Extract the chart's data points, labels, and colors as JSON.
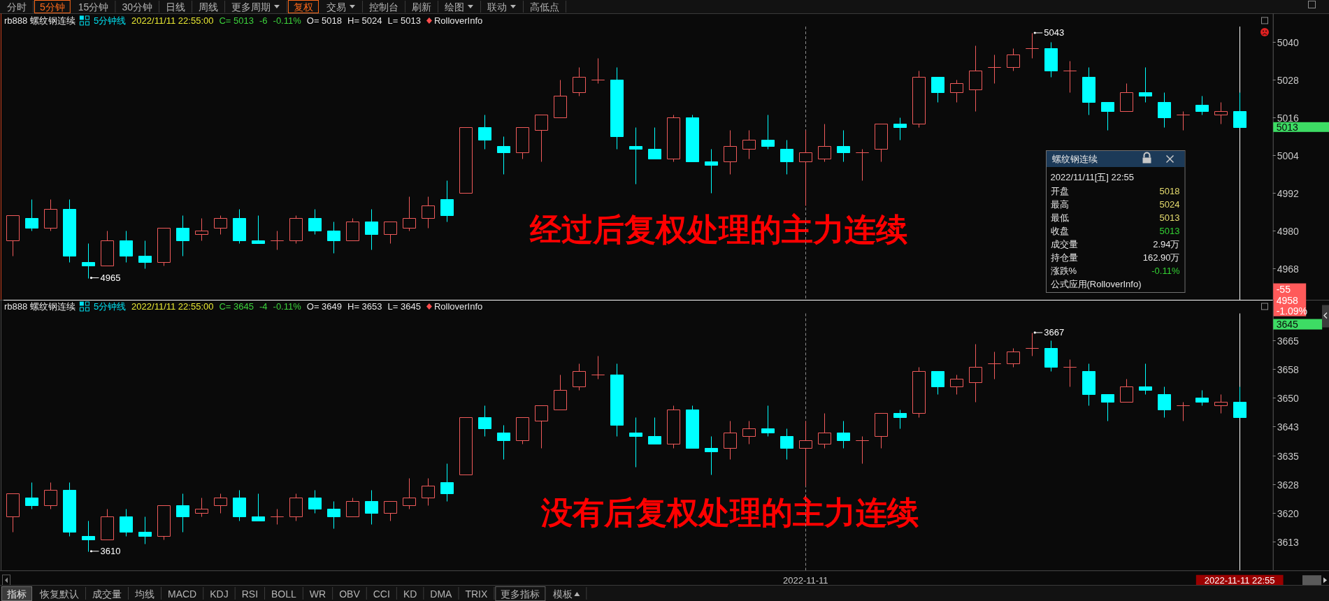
{
  "chart_data": [
    {
      "type": "other",
      "annotations": [
        "分时",
        "5分钟",
        "15分钟",
        "30分钟",
        "日线",
        "周线",
        "更多周期",
        "复权",
        "交易",
        "控制台",
        "刷新",
        "绘图",
        "联动",
        "高低点"
      ]
    },
    {
      "type": "candlestick",
      "title": "rb888 螺纹钢连续",
      "categories": [
        null,
        null,
        null,
        null,
        null,
        null,
        null,
        null,
        null,
        null,
        null,
        null,
        null,
        null,
        null,
        null,
        null,
        null,
        null,
        null,
        null,
        null,
        null,
        null,
        null,
        null,
        null,
        null,
        null,
        null,
        null,
        null,
        null,
        null,
        null,
        null,
        null,
        null,
        null,
        null,
        null,
        null,
        "2022-11-11",
        null,
        null,
        null,
        null,
        null,
        null,
        null,
        null,
        null,
        null,
        null,
        null,
        null,
        null,
        null,
        null,
        null,
        null,
        null,
        null,
        null,
        null,
        "2022-11-11 22:55"
      ],
      "ohlc": [
        [
          4977,
          4985,
          4972,
          4985
        ],
        [
          4984,
          4990,
          4980,
          4981
        ],
        [
          4981,
          4990,
          4980,
          4987
        ],
        [
          4987,
          4990,
          4970,
          4972
        ],
        [
          4970,
          4976,
          4965,
          4969
        ],
        [
          4969,
          4980,
          4969,
          4977
        ],
        [
          4977,
          4980,
          4970,
          4972
        ],
        [
          4972,
          4977,
          4968,
          4970
        ],
        [
          4970,
          4981,
          4969,
          4981
        ],
        [
          4981,
          4985,
          4972,
          4977
        ],
        [
          4979,
          4984,
          4977,
          4980
        ],
        [
          4981,
          4985,
          4979,
          4984
        ],
        [
          4984,
          4987,
          4976,
          4977
        ],
        [
          4977,
          4985,
          4976,
          4976
        ],
        [
          4977,
          4980,
          4974,
          4977
        ],
        [
          4977,
          4985,
          4976,
          4984
        ],
        [
          4984,
          4987,
          4979,
          4980
        ],
        [
          4980,
          4983,
          4973,
          4977
        ],
        [
          4977,
          4984,
          4977,
          4983
        ],
        [
          4983,
          4987,
          4974,
          4979
        ],
        [
          4979,
          4983,
          4976,
          4983
        ],
        [
          4981,
          4991,
          4980,
          4984
        ],
        [
          4984,
          4991,
          4981,
          4988
        ],
        [
          4990,
          4996,
          4983,
          4985
        ],
        [
          4992,
          5013,
          4992,
          5013
        ],
        [
          5013,
          5017,
          5006,
          5009
        ],
        [
          5007,
          5010,
          4998,
          5005
        ],
        [
          5005,
          5013,
          5003,
          5013
        ],
        [
          5012,
          5017,
          5002,
          5017
        ],
        [
          5016,
          5028,
          5016,
          5023
        ],
        [
          5024,
          5032,
          5023,
          5029
        ],
        [
          5028,
          5035,
          5027,
          5028
        ],
        [
          5028,
          5032,
          5006,
          5010
        ],
        [
          5007,
          5013,
          4995,
          5006
        ],
        [
          5006,
          5013,
          5003,
          5003
        ],
        [
          5003,
          5017,
          5002,
          5016
        ],
        [
          5016,
          5017,
          5002,
          5002
        ],
        [
          5002,
          5006,
          4992,
          5001
        ],
        [
          5002,
          5012,
          4998,
          5007
        ],
        [
          5006,
          5012,
          5003,
          5009
        ],
        [
          5009,
          5017,
          5006,
          5007
        ],
        [
          5006,
          5009,
          4998,
          5002
        ],
        [
          5002,
          5012,
          4988,
          5005
        ],
        [
          5003,
          5014,
          5002,
          5007
        ],
        [
          5007,
          5012,
          5002,
          5005
        ],
        [
          5005,
          5006,
          4996,
          5005
        ],
        [
          5006,
          5014,
          5002,
          5014
        ],
        [
          5014,
          5016,
          5009,
          5013
        ],
        [
          5014,
          5031,
          5013,
          5029
        ],
        [
          5029,
          5029,
          5021,
          5024
        ],
        [
          5024,
          5028,
          5021,
          5027
        ],
        [
          5025,
          5039,
          5018,
          5031
        ],
        [
          5032,
          5036,
          5027,
          5032
        ],
        [
          5032,
          5038,
          5031,
          5036
        ],
        [
          5038,
          5043,
          5035,
          5038
        ],
        [
          5038,
          5040,
          5029,
          5031
        ],
        [
          5031,
          5034,
          5024,
          5031
        ],
        [
          5029,
          5032,
          5017,
          5021
        ],
        [
          5021,
          5021,
          5012,
          5018
        ],
        [
          5018,
          5027,
          5018,
          5024
        ],
        [
          5024,
          5032,
          5021,
          5023
        ],
        [
          5021,
          5024,
          5013,
          5016
        ],
        [
          5017,
          5018,
          5012,
          5017
        ],
        [
          5020,
          5023,
          5017,
          5018
        ],
        [
          5017,
          5021,
          5014,
          5018
        ],
        [
          5018,
          5024,
          5013,
          5013
        ]
      ],
      "colors": [
        "#f05a5a",
        "#00ffff",
        "#f05a5a",
        "#00ffff",
        "#00ffff",
        "#f05a5a",
        "#00ffff",
        "#00ffff",
        "#f05a5a",
        "#00ffff",
        "#f05a5a",
        "#f05a5a",
        "#00ffff",
        "#00ffff",
        "#f05a5a",
        "#f05a5a",
        "#00ffff",
        "#00ffff",
        "#f05a5a",
        "#00ffff",
        "#f05a5a",
        "#f05a5a",
        "#f05a5a",
        "#00ffff",
        "#f05a5a",
        "#00ffff",
        "#00ffff",
        "#f05a5a",
        "#f05a5a",
        "#f05a5a",
        "#f05a5a",
        "#f05a5a",
        "#00ffff",
        "#00ffff",
        "#00ffff",
        "#f05a5a",
        "#00ffff",
        "#00ffff",
        "#f05a5a",
        "#f05a5a",
        "#00ffff",
        "#00ffff",
        "#f05a5a",
        "#f05a5a",
        "#00ffff",
        "#f05a5a",
        "#f05a5a",
        "#00ffff",
        "#f05a5a",
        "#00ffff",
        "#f05a5a",
        "#f05a5a",
        "#f05a5a",
        "#f05a5a",
        "#f05a5a",
        "#00ffff",
        "#f05a5a",
        "#00ffff",
        "#00ffff",
        "#f05a5a",
        "#00ffff",
        "#00ffff",
        "#f05a5a",
        "#00ffff",
        "#f05a5a",
        "#00ffff"
      ],
      "ylim": [
        4958,
        5045
      ],
      "yticks": [
        4968,
        4980,
        4992,
        5004,
        5016,
        5028,
        5040
      ],
      "tick_labels": "y",
      "ref_lines": [
        {
          "axis": "x",
          "value": "2022-11-11",
          "color": "#8c8c8c",
          "line_style": "dashed"
        },
        {
          "axis": "x",
          "value": "2022-11-11 22:55",
          "color": "#ffffff"
        },
        {
          "axis": "y",
          "value": 4958,
          "label": "4958",
          "color": "#ffffff"
        }
      ],
      "annotations": [
        "5分钟线",
        "2022/11/11 22:55:00",
        "C= 5013",
        "-6",
        "-0.11%",
        "O= 5018",
        "H= 5024",
        "L= 5013",
        "RolloverInfo",
        "经过后复权处理的主力连续",
        "5043",
        "4965",
        "5013",
        "-55",
        "-1.09%"
      ]
    },
    {
      "type": "other",
      "title": "螺纹钢连续",
      "subtitle": "2022/11/11[五] 22:55",
      "annotations": [
        "开盘",
        "5018",
        "最高",
        "5024",
        "最低",
        "5013",
        "收盘",
        "5013",
        "成交量",
        "2.94万",
        "持仓量",
        "162.90万",
        "涨跌%",
        "-0.11%",
        "公式应用(RolloverInfo)"
      ]
    },
    {
      "type": "candlestick",
      "title": "rb888 螺纹钢连续",
      "categories": [
        null,
        null,
        null,
        null,
        null,
        null,
        null,
        null,
        null,
        null,
        null,
        null,
        null,
        null,
        null,
        null,
        null,
        null,
        null,
        null,
        null,
        null,
        null,
        null,
        null,
        null,
        null,
        null,
        null,
        null,
        null,
        null,
        null,
        null,
        null,
        null,
        null,
        null,
        null,
        null,
        null,
        null,
        "2022-11-11",
        null,
        null,
        null,
        null,
        null,
        null,
        null,
        null,
        null,
        null,
        null,
        null,
        null,
        null,
        null,
        null,
        null,
        null,
        null,
        null,
        null,
        null,
        "2022-11-11 22:55"
      ],
      "ohlc": [
        [
          3619,
          3625,
          3615,
          3625
        ],
        [
          3624,
          3628,
          3621,
          3622
        ],
        [
          3622,
          3628,
          3621,
          3626
        ],
        [
          3626,
          3628,
          3614,
          3615
        ],
        [
          3614,
          3618,
          3610,
          3613
        ],
        [
          3613,
          3621,
          3613,
          3619
        ],
        [
          3619,
          3621,
          3614,
          3615
        ],
        [
          3615,
          3619,
          3612,
          3614
        ],
        [
          3614,
          3622,
          3613,
          3622
        ],
        [
          3622,
          3625,
          3615,
          3619
        ],
        [
          3620,
          3624,
          3619,
          3621
        ],
        [
          3622,
          3625,
          3620,
          3624
        ],
        [
          3624,
          3626,
          3618,
          3619
        ],
        [
          3619,
          3625,
          3618,
          3618
        ],
        [
          3619,
          3621,
          3617,
          3619
        ],
        [
          3619,
          3625,
          3618,
          3624
        ],
        [
          3624,
          3626,
          3620,
          3621
        ],
        [
          3621,
          3623,
          3616,
          3619
        ],
        [
          3619,
          3624,
          3619,
          3623
        ],
        [
          3623,
          3626,
          3617,
          3620
        ],
        [
          3620,
          3623,
          3618,
          3623
        ],
        [
          3622,
          3629,
          3621,
          3624
        ],
        [
          3624,
          3629,
          3622,
          3627
        ],
        [
          3628,
          3633,
          3623,
          3625
        ],
        [
          3630,
          3645,
          3630,
          3645
        ],
        [
          3645,
          3648,
          3640,
          3642
        ],
        [
          3641,
          3643,
          3634,
          3639
        ],
        [
          3639,
          3645,
          3638,
          3645
        ],
        [
          3644,
          3648,
          3637,
          3648
        ],
        [
          3647,
          3656,
          3647,
          3652
        ],
        [
          3653,
          3659,
          3652,
          3657
        ],
        [
          3656,
          3661,
          3655,
          3656
        ],
        [
          3656,
          3659,
          3640,
          3643
        ],
        [
          3641,
          3645,
          3632,
          3640
        ],
        [
          3640,
          3645,
          3638,
          3638
        ],
        [
          3638,
          3648,
          3637,
          3647
        ],
        [
          3647,
          3648,
          3637,
          3637
        ],
        [
          3637,
          3640,
          3630,
          3636
        ],
        [
          3637,
          3644,
          3634,
          3641
        ],
        [
          3640,
          3644,
          3638,
          3642
        ],
        [
          3642,
          3648,
          3640,
          3641
        ],
        [
          3640,
          3642,
          3634,
          3637
        ],
        [
          3637,
          3644,
          3627,
          3639
        ],
        [
          3638,
          3646,
          3637,
          3641
        ],
        [
          3641,
          3644,
          3637,
          3639
        ],
        [
          3639,
          3640,
          3633,
          3639
        ],
        [
          3640,
          3646,
          3637,
          3646
        ],
        [
          3646,
          3647,
          3642,
          3645
        ],
        [
          3646,
          3658,
          3645,
          3657
        ],
        [
          3657,
          3657,
          3651,
          3653
        ],
        [
          3653,
          3656,
          3651,
          3655
        ],
        [
          3654,
          3664,
          3649,
          3658
        ],
        [
          3659,
          3662,
          3655,
          3659
        ],
        [
          3659,
          3663,
          3658,
          3662
        ],
        [
          3663,
          3667,
          3661,
          3663
        ],
        [
          3663,
          3665,
          3657,
          3658
        ],
        [
          3658,
          3660,
          3653,
          3658
        ],
        [
          3657,
          3659,
          3648,
          3651
        ],
        [
          3651,
          3651,
          3644,
          3649
        ],
        [
          3649,
          3655,
          3649,
          3653
        ],
        [
          3653,
          3659,
          3651,
          3652
        ],
        [
          3651,
          3653,
          3645,
          3647
        ],
        [
          3648,
          3649,
          3644,
          3648
        ],
        [
          3650,
          3652,
          3648,
          3649
        ],
        [
          3648,
          3651,
          3646,
          3649
        ],
        [
          3649,
          3653,
          3645,
          3645
        ]
      ],
      "colors": [
        "#f05a5a",
        "#00ffff",
        "#f05a5a",
        "#00ffff",
        "#00ffff",
        "#f05a5a",
        "#00ffff",
        "#00ffff",
        "#f05a5a",
        "#00ffff",
        "#f05a5a",
        "#f05a5a",
        "#00ffff",
        "#00ffff",
        "#f05a5a",
        "#f05a5a",
        "#00ffff",
        "#00ffff",
        "#f05a5a",
        "#00ffff",
        "#f05a5a",
        "#f05a5a",
        "#f05a5a",
        "#00ffff",
        "#f05a5a",
        "#00ffff",
        "#00ffff",
        "#f05a5a",
        "#f05a5a",
        "#f05a5a",
        "#f05a5a",
        "#f05a5a",
        "#00ffff",
        "#00ffff",
        "#00ffff",
        "#f05a5a",
        "#00ffff",
        "#00ffff",
        "#f05a5a",
        "#f05a5a",
        "#00ffff",
        "#00ffff",
        "#f05a5a",
        "#f05a5a",
        "#00ffff",
        "#f05a5a",
        "#f05a5a",
        "#00ffff",
        "#f05a5a",
        "#00ffff",
        "#f05a5a",
        "#f05a5a",
        "#f05a5a",
        "#f05a5a",
        "#f05a5a",
        "#00ffff",
        "#f05a5a",
        "#00ffff",
        "#00ffff",
        "#f05a5a",
        "#00ffff",
        "#00ffff",
        "#f05a5a",
        "#00ffff",
        "#f05a5a",
        "#00ffff"
      ],
      "ylim": [
        3605,
        3672
      ],
      "yticks": [
        {
          "value": 3612.5,
          "label": "3613"
        },
        3620,
        {
          "value": 3627.5,
          "label": "3628"
        },
        3635,
        {
          "value": 3642.5,
          "label": "3643"
        },
        3650,
        {
          "value": 3657.5,
          "label": "3658"
        },
        3665
      ],
      "ref_lines": [
        {
          "axis": "x",
          "value": "2022-11-11",
          "color": "#8c8c8c",
          "line_style": "dashed"
        },
        {
          "axis": "x",
          "value": "2022-11-11 22:55",
          "color": "#ffffff"
        }
      ],
      "annotations": [
        "5分钟线",
        "2022/11/11 22:55:00",
        "C= 3645",
        "-4",
        "-0.11%",
        "O= 3649",
        "H= 3653",
        "L= 3645",
        "RolloverInfo",
        "没有后复权处理的主力连续",
        "3667",
        "3610",
        "3645"
      ]
    },
    {
      "type": "other",
      "annotations": [
        "指标",
        "恢复默认",
        "成交量",
        "均线",
        "MACD",
        "KDJ",
        "RSI",
        "BOLL",
        "WR",
        "OBV",
        "CCI",
        "KD",
        "DMA",
        "TRIX",
        "更多指标",
        "模板"
      ]
    }
  ]
}
